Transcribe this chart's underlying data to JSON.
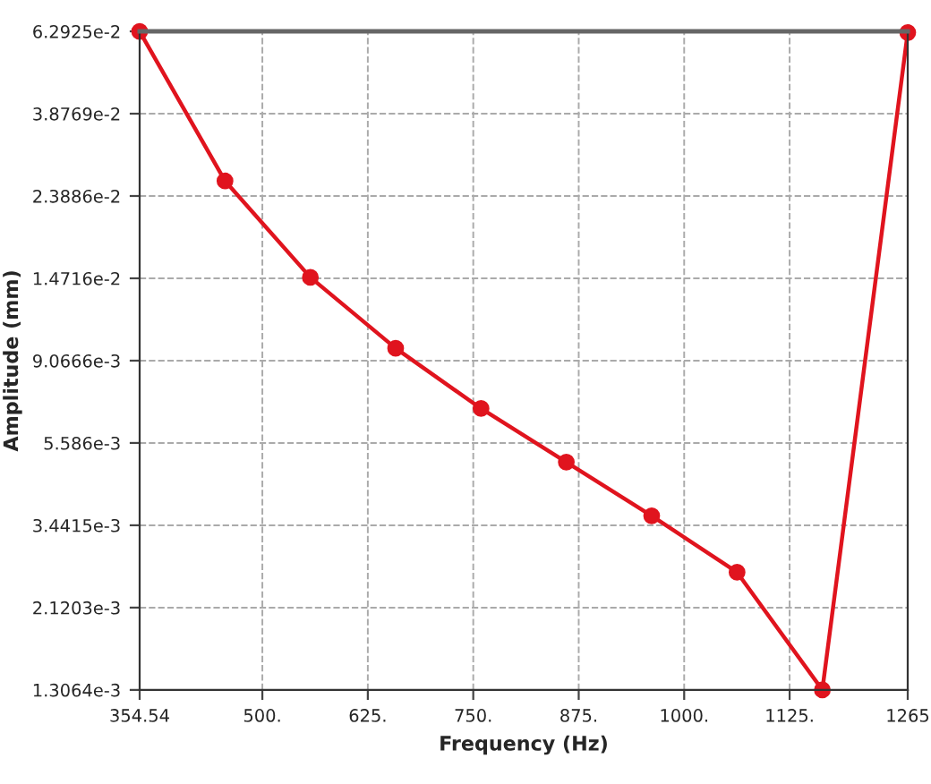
{
  "chart_data": {
    "type": "line",
    "xlabel": "Frequency (Hz)",
    "ylabel": "Amplitude (mm)",
    "x": [
      354.54,
      455.7,
      556.9,
      658.0,
      759.2,
      860.3,
      961.5,
      1062.7,
      1163.8,
      1265
    ],
    "series": [
      {
        "color": "#e0141e",
        "values": [
          0.062925,
          0.0261,
          0.0148,
          0.00975,
          0.00684,
          0.00499,
          0.00364,
          0.00261,
          0.0013064,
          0.0625
        ]
      }
    ],
    "log": "y",
    "grid": true,
    "marker": "circle",
    "line_style": "solid",
    "xlim": [
      354.54,
      1265
    ],
    "xticks": [
      {
        "value": 354.54,
        "label": "354.54"
      },
      {
        "value": 500,
        "label": "500."
      },
      {
        "value": 625,
        "label": "625."
      },
      {
        "value": 750,
        "label": "750."
      },
      {
        "value": 875,
        "label": "875."
      },
      {
        "value": 1000,
        "label": "1000."
      },
      {
        "value": 1125,
        "label": "1125."
      },
      {
        "value": 1265,
        "label": "1265"
      }
    ],
    "ylim": [
      0.0013064,
      0.062925
    ],
    "yticks": [
      {
        "value": 0.062925,
        "label": "6.2925e-2"
      },
      {
        "value": 0.038769,
        "label": "3.8769e-2"
      },
      {
        "value": 0.023886,
        "label": "2.3886e-2"
      },
      {
        "value": 0.014716,
        "label": "1.4716e-2"
      },
      {
        "value": 0.0090666,
        "label": "9.0666e-3"
      },
      {
        "value": 0.005586,
        "label": "5.586e-3"
      },
      {
        "value": 0.0034415,
        "label": "3.4415e-3"
      },
      {
        "value": 0.0021203,
        "label": "2.1203e-3"
      },
      {
        "value": 0.0013064,
        "label": "1.3064e-3"
      }
    ]
  }
}
